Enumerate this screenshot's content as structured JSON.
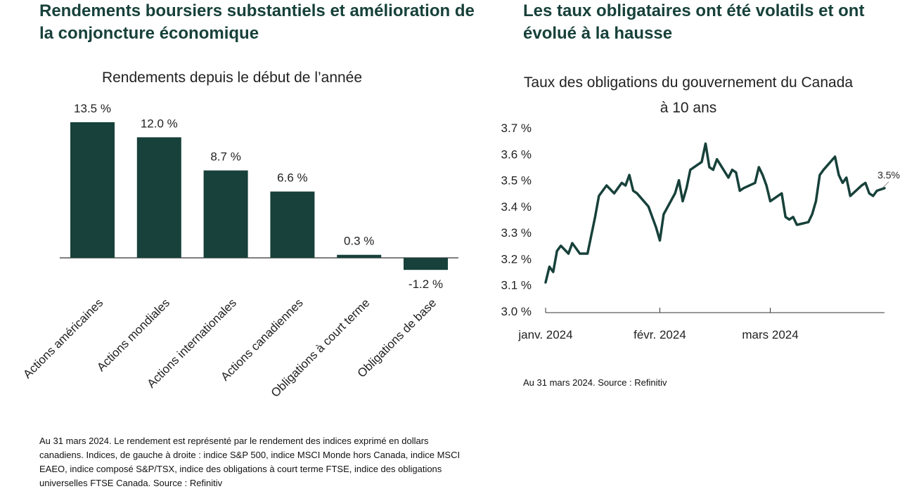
{
  "colors": {
    "bar": "#17413a",
    "line": "#17413a",
    "heading": "#17413a",
    "axis": "#222222"
  },
  "left_panel": {
    "heading": "Rendements boursiers substantiels et amélioration de la conjoncture économique",
    "footnote": "Au 31 mars 2024. Le rendement est représenté par le rendement des indices exprimé en dollars canadiens. Indices, de gauche à droite : indice S&P 500, indice MSCI Monde hors Canada, indice MSCI EAEO, indice composé S&P/TSX, indice des obligations à court terme FTSE, indice des obligations universelles FTSE Canada. Source : Refinitiv"
  },
  "right_panel": {
    "heading": "Les taux obligataires ont été volatils et ont évolué à la hausse",
    "footnote": "Au 31 mars 2024. Source : Refinitiv"
  },
  "chart_data": [
    {
      "type": "bar",
      "title": "Rendements depuis le début de l’année",
      "categories": [
        "Actions américaines",
        "Actions mondiales",
        "Actions internationales",
        "Actions canadiennes",
        "Obligations à court terme",
        "Obligations de base"
      ],
      "values": [
        13.5,
        12.0,
        8.7,
        6.6,
        0.3,
        -1.2
      ],
      "value_labels": [
        "13.5 %",
        "12.0 %",
        "8.7 %",
        "6.6 %",
        "0.3 %",
        "-1.2 %"
      ],
      "unit": "%",
      "grid": false
    },
    {
      "type": "line",
      "title": "Taux des obligations du gouvernement du Canada à 10 ans",
      "unit": "%",
      "ylim": [
        3.0,
        3.7
      ],
      "yticks": [
        3.0,
        3.1,
        3.2,
        3.3,
        3.4,
        3.5,
        3.6,
        3.7
      ],
      "ytick_labels": [
        "3.0 %",
        "3.1 %",
        "3.2 %",
        "3.3 %",
        "3.4 %",
        "3.5 %",
        "3.6 %",
        "3.7 %"
      ],
      "xticks": [
        "2024-01-01",
        "2024-02-01",
        "2024-03-01"
      ],
      "xtick_labels": [
        "janv. 2024",
        "févr. 2024",
        "mars 2024"
      ],
      "xlim": [
        "2024-01-02",
        "2024-03-31"
      ],
      "grid": false,
      "end_label": "3.5%",
      "series": [
        {
          "x": [
            "2024-01-02",
            "2024-01-03",
            "2024-01-04",
            "2024-01-05",
            "2024-01-06",
            "2024-01-08",
            "2024-01-09",
            "2024-01-10",
            "2024-01-11",
            "2024-01-12",
            "2024-01-13",
            "2024-01-15",
            "2024-01-16",
            "2024-01-18",
            "2024-01-20",
            "2024-01-22",
            "2024-01-23",
            "2024-01-24",
            "2024-01-25",
            "2024-01-26",
            "2024-01-29",
            "2024-01-31",
            "2024-02-01",
            "2024-02-02",
            "2024-02-05",
            "2024-02-06",
            "2024-02-07",
            "2024-02-08",
            "2024-02-09",
            "2024-02-12",
            "2024-02-13",
            "2024-02-14",
            "2024-02-15",
            "2024-02-16",
            "2024-02-19",
            "2024-02-20",
            "2024-02-21",
            "2024-02-22",
            "2024-02-23",
            "2024-02-26",
            "2024-02-27",
            "2024-02-28",
            "2024-02-29",
            "2024-03-01",
            "2024-03-04",
            "2024-03-05",
            "2024-03-06",
            "2024-03-07",
            "2024-03-08",
            "2024-03-11",
            "2024-03-12",
            "2024-03-13",
            "2024-03-14",
            "2024-03-15",
            "2024-03-18",
            "2024-03-19",
            "2024-03-20",
            "2024-03-21",
            "2024-03-22",
            "2024-03-25",
            "2024-03-26",
            "2024-03-27",
            "2024-03-28",
            "2024-03-29",
            "2024-03-31"
          ],
          "y": [
            3.11,
            3.17,
            3.15,
            3.23,
            3.25,
            3.22,
            3.26,
            3.24,
            3.22,
            3.22,
            3.22,
            3.36,
            3.44,
            3.48,
            3.45,
            3.49,
            3.48,
            3.52,
            3.46,
            3.45,
            3.4,
            3.32,
            3.27,
            3.37,
            3.45,
            3.5,
            3.42,
            3.47,
            3.54,
            3.57,
            3.64,
            3.55,
            3.54,
            3.58,
            3.51,
            3.54,
            3.53,
            3.46,
            3.47,
            3.49,
            3.55,
            3.52,
            3.48,
            3.42,
            3.45,
            3.36,
            3.35,
            3.36,
            3.33,
            3.34,
            3.37,
            3.42,
            3.52,
            3.54,
            3.59,
            3.52,
            3.49,
            3.51,
            3.44,
            3.48,
            3.49,
            3.45,
            3.44,
            3.46,
            3.47
          ]
        }
      ]
    }
  ]
}
